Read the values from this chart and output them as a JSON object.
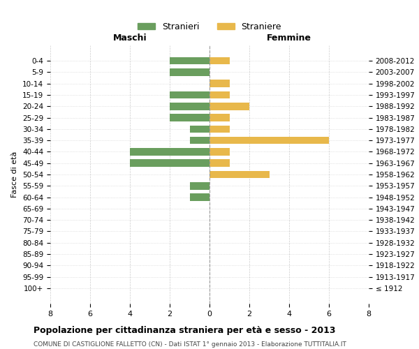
{
  "age_groups": [
    "100+",
    "95-99",
    "90-94",
    "85-89",
    "80-84",
    "75-79",
    "70-74",
    "65-69",
    "60-64",
    "55-59",
    "50-54",
    "45-49",
    "40-44",
    "35-39",
    "30-34",
    "25-29",
    "20-24",
    "15-19",
    "10-14",
    "5-9",
    "0-4"
  ],
  "birth_years": [
    "≤ 1912",
    "1913-1917",
    "1918-1922",
    "1923-1927",
    "1928-1932",
    "1933-1937",
    "1938-1942",
    "1943-1947",
    "1948-1952",
    "1953-1957",
    "1958-1962",
    "1963-1967",
    "1968-1972",
    "1973-1977",
    "1978-1982",
    "1983-1987",
    "1988-1992",
    "1993-1997",
    "1998-2002",
    "2003-2007",
    "2008-2012"
  ],
  "maschi": [
    0,
    0,
    0,
    0,
    0,
    0,
    0,
    0,
    1,
    1,
    0,
    4,
    4,
    1,
    1,
    2,
    2,
    2,
    0,
    2,
    2
  ],
  "femmine": [
    0,
    0,
    0,
    0,
    0,
    0,
    0,
    0,
    0,
    0,
    3,
    1,
    1,
    6,
    1,
    1,
    2,
    1,
    1,
    0,
    1
  ],
  "maschi_color": "#6a9e5e",
  "femmine_color": "#e8b84b",
  "title": "Popolazione per cittadinanza straniera per età e sesso - 2013",
  "subtitle": "COMUNE DI CASTIGLIONE FALLETTO (CN) - Dati ISTAT 1° gennaio 2013 - Elaborazione TUTTITALIA.IT",
  "xlabel_left": "Maschi",
  "xlabel_right": "Femmine",
  "ylabel_left": "Fasce di età",
  "legend_maschi": "Stranieri",
  "legend_femmine": "Straniere",
  "xlim": 8,
  "background_color": "#ffffff",
  "grid_color": "#cccccc"
}
